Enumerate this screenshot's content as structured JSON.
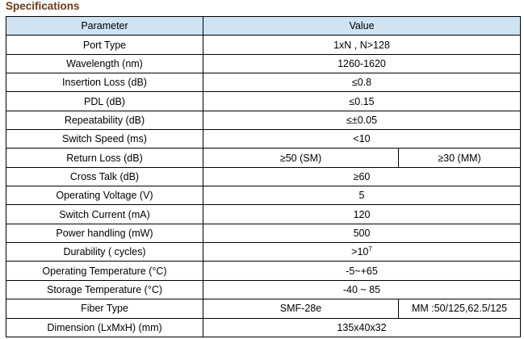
{
  "title": "Specifications",
  "table": {
    "header": {
      "parameter": "Parameter",
      "value": "Value"
    },
    "rows": [
      {
        "parameter": "Port Type",
        "value": "1xN , N>128"
      },
      {
        "parameter": "Wavelength (nm)",
        "value": "1260-1620"
      },
      {
        "parameter": "Insertion Loss (dB)",
        "value": "≤0.8"
      },
      {
        "parameter": "PDL (dB)",
        "value": "≤0.15"
      },
      {
        "parameter": "Repeatability (dB)",
        "value": "≤±0.05"
      },
      {
        "parameter": "Switch Speed (ms)",
        "value": "<10"
      },
      {
        "parameter": "Return Loss (dB)",
        "value": "≥50 (SM)",
        "value2": "≥30 (MM)"
      },
      {
        "parameter": "Cross Talk (dB)",
        "value": "≥60"
      },
      {
        "parameter": "Operating Voltage (V)",
        "value": "5"
      },
      {
        "parameter": "Switch Current (mA)",
        "value": "120"
      },
      {
        "parameter": "Power handling (mW)",
        "value": "500"
      },
      {
        "parameter": "Durability ( cycles)",
        "value": ">10",
        "value_sup": "7"
      },
      {
        "parameter": "Operating Temperature (°C)",
        "value": "-5~+65"
      },
      {
        "parameter": "Storage Temperature (°C)",
        "value": "-40 ~ 85"
      },
      {
        "parameter": "Fiber Type",
        "value": "SMF-28e",
        "value2": "MM :50/125,62.5/125"
      },
      {
        "parameter": "Dimension (LxMxH) (mm)",
        "value": "135x40x32"
      }
    ]
  }
}
